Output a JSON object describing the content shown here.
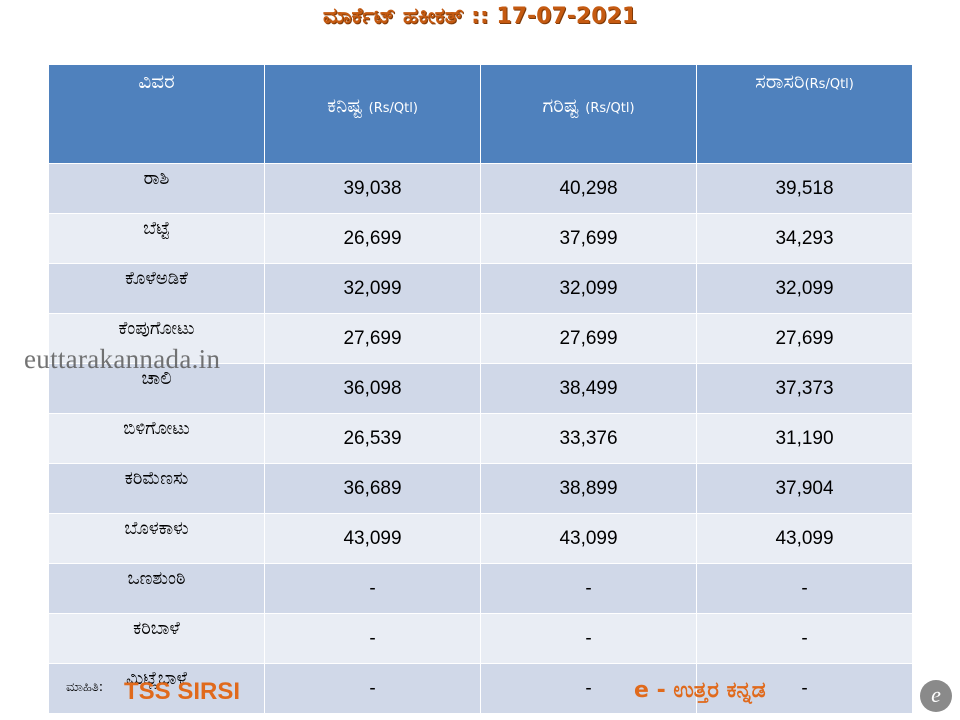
{
  "title": "ಮಾರ್ಕೆಟ್ ಹಕೀಕತ್ :: 17-07-2021",
  "table": {
    "headers": [
      "ವಿವರ",
      "ಕನಿಷ್ಟ",
      "ಗರಿಷ್ಟ",
      "ಸರಾಸರಿ"
    ],
    "units": [
      "",
      "(Rs/Qtl)",
      "(Rs/Qtl)",
      "(Rs/Qtl)"
    ],
    "rows": [
      [
        "ರಾಶಿ",
        "39,038",
        "40,298",
        "39,518"
      ],
      [
        "ಬೆಟ್ಟೆ",
        "26,699",
        "37,699",
        "34,293"
      ],
      [
        "ಕೊಳೆಅಡಿಕೆ",
        "32,099",
        "32,099",
        "32,099"
      ],
      [
        "ಕೆಂಪುಗೋಟು",
        "27,699",
        "27,699",
        "27,699"
      ],
      [
        "ಚಾಲಿ",
        "36,098",
        "38,499",
        "37,373"
      ],
      [
        "ಬಿಳಿಗೋಟು",
        "26,539",
        "33,376",
        "31,190"
      ],
      [
        "ಕರಿಮೆಣಸು",
        "36,689",
        "38,899",
        "37,904"
      ],
      [
        "ಬೊಳಕಾಳು",
        "43,099",
        "43,099",
        "43,099"
      ],
      [
        "ಒಣಶುಂಠಿ",
        "-",
        "-",
        "-"
      ],
      [
        "ಕರಿಬಾಳೆ",
        "-",
        "-",
        "-"
      ],
      [
        "ಮಿಟ್ಲೆಬಾಳೆ",
        "-",
        "-",
        "-"
      ]
    ]
  },
  "watermark": "euttarakannada.in",
  "source_label": "ಮಾಹಿತಿ:",
  "source_name": "TSS SIRSI",
  "brand": "e - ಉತ್ತರ ಕನ್ನಡ",
  "logo_letter": "e",
  "colors": {
    "header_bg": "#4f81bd",
    "row_odd": "#d0d8e8",
    "row_even": "#e9edf4",
    "accent": "#e06a1c"
  }
}
